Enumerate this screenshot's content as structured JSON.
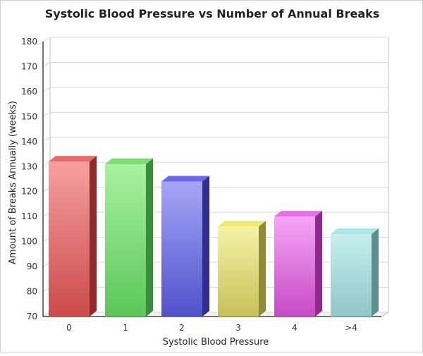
{
  "chart_data": {
    "type": "bar",
    "title": "Systolic Blood Pressure vs Number of Annual Breaks",
    "xlabel": "Systolic Blood Pressure",
    "ylabel": "Amount of Breaks Annually (weeks)",
    "categories": [
      "0",
      "1",
      "2",
      "3",
      "4",
      ">4"
    ],
    "values": [
      132,
      131,
      124,
      106,
      110,
      103
    ],
    "ylim": [
      70,
      180
    ],
    "yticks": [
      70,
      80,
      90,
      100,
      110,
      120,
      130,
      140,
      150,
      160,
      170,
      180
    ],
    "grid": true,
    "bar_colors": [
      {
        "light": "#f6a0a0",
        "dark": "#cc4a4a",
        "top": "#ee6a6a",
        "side": "#8e2a2a"
      },
      {
        "light": "#a8f2a0",
        "dark": "#5cc65a",
        "top": "#79e070",
        "side": "#3a8e38"
      },
      {
        "light": "#a6a6f6",
        "dark": "#5050cc",
        "top": "#6a6ae8",
        "side": "#2e2e8e"
      },
      {
        "light": "#f6f2a6",
        "dark": "#c6c05a",
        "top": "#ecea70",
        "side": "#8e8a38"
      },
      {
        "light": "#f6a6f6",
        "dark": "#c64ac6",
        "top": "#ea70ea",
        "side": "#8e2a8e"
      },
      {
        "light": "#c6eeee",
        "dark": "#90c6c6",
        "top": "#aee6e6",
        "side": "#5e8e8e"
      }
    ]
  }
}
